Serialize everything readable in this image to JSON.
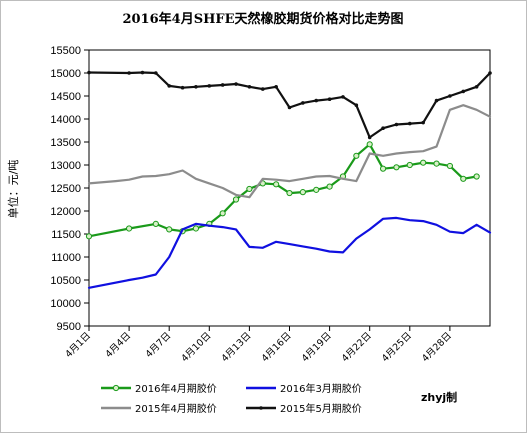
{
  "chart_data": {
    "type": "line",
    "title": "2016年4月SHFE天然橡胶期货价格对比走势图",
    "ylabel": "单位：元/吨",
    "xlabel": "",
    "ylim": [
      9500,
      15500
    ],
    "yticks": [
      9500,
      10000,
      10500,
      11000,
      11500,
      12000,
      12500,
      13000,
      13500,
      14000,
      14500,
      15000,
      15500
    ],
    "x_day_range": [
      1,
      31
    ],
    "xticks": [
      {
        "day": 1,
        "label": "4月1日"
      },
      {
        "day": 4,
        "label": "4月4日"
      },
      {
        "day": 7,
        "label": "4月7日"
      },
      {
        "day": 10,
        "label": "4月10日"
      },
      {
        "day": 13,
        "label": "4月13日"
      },
      {
        "day": 16,
        "label": "4月16日"
      },
      {
        "day": 19,
        "label": "4月19日"
      },
      {
        "day": 22,
        "label": "4月22日"
      },
      {
        "day": 25,
        "label": "4月25日"
      },
      {
        "day": 28,
        "label": "4月28日"
      }
    ],
    "grid": false,
    "legend_position": "bottom",
    "credit": "zhyj制",
    "series": [
      {
        "name": "2016年4月期胶价",
        "color": "#1a9a1a",
        "marker": "circle",
        "points": [
          [
            1,
            11450
          ],
          [
            4,
            11620
          ],
          [
            6,
            11720
          ],
          [
            7,
            11600
          ],
          [
            8,
            11560
          ],
          [
            9,
            11620
          ],
          [
            10,
            11720
          ],
          [
            11,
            11950
          ],
          [
            12,
            12250
          ],
          [
            13,
            12480
          ],
          [
            14,
            12600
          ],
          [
            15,
            12580
          ],
          [
            16,
            12390
          ],
          [
            17,
            12410
          ],
          [
            18,
            12460
          ],
          [
            19,
            12530
          ],
          [
            20,
            12750
          ],
          [
            21,
            13200
          ],
          [
            22,
            13450
          ],
          [
            23,
            12920
          ],
          [
            24,
            12950
          ],
          [
            25,
            13000
          ],
          [
            26,
            13050
          ],
          [
            27,
            13030
          ],
          [
            28,
            12980
          ],
          [
            29,
            12700
          ],
          [
            30,
            12750
          ]
        ]
      },
      {
        "name": "2016年3月期胶价",
        "color": "#1010e0",
        "marker": "none",
        "points": [
          [
            1,
            10330
          ],
          [
            4,
            10500
          ],
          [
            5,
            10550
          ],
          [
            6,
            10620
          ],
          [
            7,
            11000
          ],
          [
            8,
            11600
          ],
          [
            9,
            11720
          ],
          [
            10,
            11680
          ],
          [
            11,
            11650
          ],
          [
            12,
            11600
          ],
          [
            13,
            11220
          ],
          [
            14,
            11200
          ],
          [
            15,
            11330
          ],
          [
            16,
            11280
          ],
          [
            17,
            11230
          ],
          [
            18,
            11180
          ],
          [
            19,
            11120
          ],
          [
            20,
            11100
          ],
          [
            21,
            11400
          ],
          [
            22,
            11600
          ],
          [
            23,
            11830
          ],
          [
            24,
            11850
          ],
          [
            25,
            11800
          ],
          [
            26,
            11780
          ],
          [
            27,
            11700
          ],
          [
            28,
            11550
          ],
          [
            29,
            11520
          ],
          [
            30,
            11700
          ],
          [
            31,
            11530
          ]
        ]
      },
      {
        "name": "2015年4月期胶价",
        "color": "#8c8c8c",
        "marker": "none",
        "points": [
          [
            1,
            12600
          ],
          [
            3,
            12650
          ],
          [
            4,
            12680
          ],
          [
            5,
            12750
          ],
          [
            6,
            12760
          ],
          [
            7,
            12800
          ],
          [
            8,
            12880
          ],
          [
            9,
            12700
          ],
          [
            10,
            12600
          ],
          [
            11,
            12500
          ],
          [
            12,
            12350
          ],
          [
            13,
            12300
          ],
          [
            14,
            12700
          ],
          [
            15,
            12680
          ],
          [
            16,
            12650
          ],
          [
            17,
            12700
          ],
          [
            18,
            12750
          ],
          [
            19,
            12760
          ],
          [
            20,
            12700
          ],
          [
            21,
            12650
          ],
          [
            22,
            13250
          ],
          [
            23,
            13200
          ],
          [
            24,
            13250
          ],
          [
            25,
            13280
          ],
          [
            26,
            13300
          ],
          [
            27,
            13400
          ],
          [
            28,
            14200
          ],
          [
            29,
            14300
          ],
          [
            30,
            14200
          ],
          [
            31,
            14050
          ]
        ]
      },
      {
        "name": "2015年5月期胶价",
        "color": "#111111",
        "marker": "dot",
        "points": [
          [
            1,
            15010
          ],
          [
            4,
            15000
          ],
          [
            5,
            15010
          ],
          [
            6,
            15000
          ],
          [
            7,
            14720
          ],
          [
            8,
            14680
          ],
          [
            9,
            14700
          ],
          [
            10,
            14720
          ],
          [
            11,
            14740
          ],
          [
            12,
            14760
          ],
          [
            13,
            14700
          ],
          [
            14,
            14650
          ],
          [
            15,
            14700
          ],
          [
            16,
            14250
          ],
          [
            17,
            14350
          ],
          [
            18,
            14400
          ],
          [
            19,
            14430
          ],
          [
            20,
            14480
          ],
          [
            21,
            14300
          ],
          [
            22,
            13600
          ],
          [
            23,
            13800
          ],
          [
            24,
            13880
          ],
          [
            25,
            13900
          ],
          [
            26,
            13920
          ],
          [
            27,
            14400
          ],
          [
            28,
            14500
          ],
          [
            29,
            14600
          ],
          [
            30,
            14700
          ],
          [
            31,
            15000
          ]
        ]
      }
    ]
  }
}
